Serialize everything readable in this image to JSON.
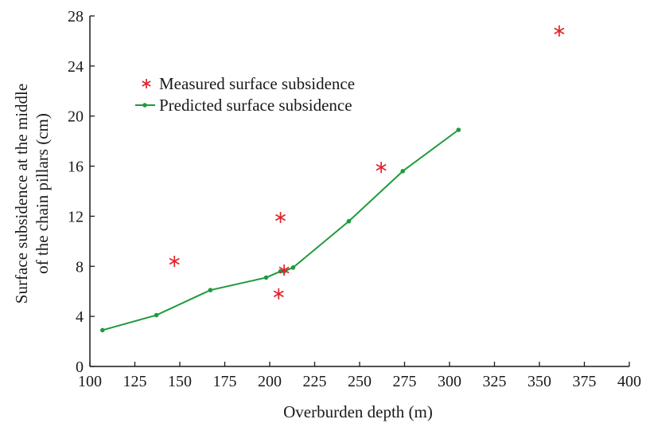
{
  "chart_data": {
    "type": "scatter",
    "xlabel": "Overburden depth (m)",
    "ylabel_lines": [
      "Surface subsidence at the middle",
      "of the chain pillars (cm)"
    ],
    "xlim": [
      100,
      400
    ],
    "ylim": [
      0,
      28
    ],
    "xticks": [
      100,
      125,
      150,
      175,
      200,
      225,
      250,
      275,
      300,
      325,
      350,
      375,
      400
    ],
    "yticks": [
      0,
      4,
      8,
      12,
      16,
      20,
      24,
      28
    ],
    "grid": false,
    "legend_position": "top-left",
    "colors": {
      "measured": "#e0242b",
      "predicted": "#1e9a3c",
      "axis": "#1a1a1a"
    },
    "series": [
      {
        "name": "Measured surface subsidence",
        "type": "scatter",
        "marker": "asterisk",
        "points": [
          {
            "x": 147,
            "y": 8.4
          },
          {
            "x": 206,
            "y": 11.9
          },
          {
            "x": 208,
            "y": 7.7
          },
          {
            "x": 205,
            "y": 5.8
          },
          {
            "x": 262,
            "y": 15.9
          },
          {
            "x": 361,
            "y": 26.8
          }
        ]
      },
      {
        "name": "Predicted surface subsidence",
        "type": "line",
        "marker": "dot",
        "segments": [
          [
            {
              "x": 107,
              "y": 2.9
            },
            {
              "x": 137,
              "y": 4.1
            },
            {
              "x": 167,
              "y": 6.1
            },
            {
              "x": 198,
              "y": 7.1
            },
            {
              "x": 206,
              "y": 7.6
            }
          ],
          [
            {
              "x": 208,
              "y": 7.6
            },
            {
              "x": 213,
              "y": 7.9
            },
            {
              "x": 244,
              "y": 11.6
            },
            {
              "x": 274,
              "y": 15.6
            },
            {
              "x": 305,
              "y": 18.9
            }
          ]
        ]
      }
    ]
  }
}
